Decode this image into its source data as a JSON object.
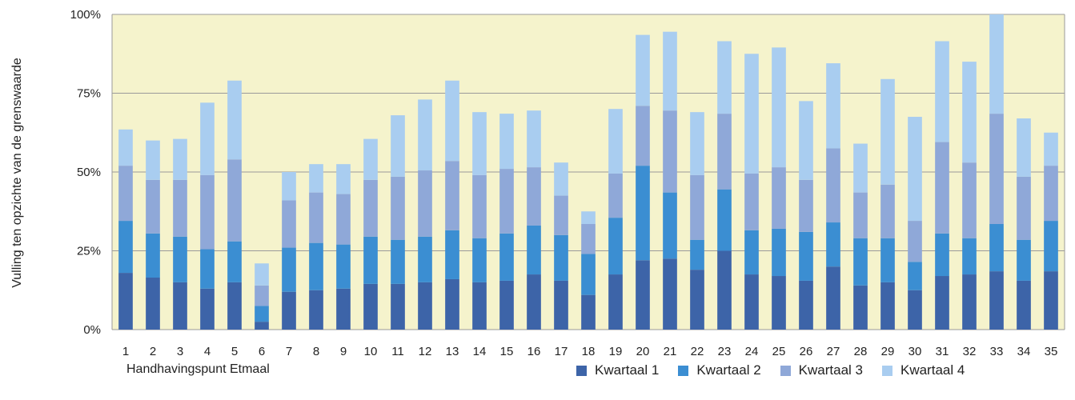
{
  "chart_data": {
    "type": "bar",
    "stacked": true,
    "ylabel": "Vulling ten opzichte van de grenswaarde",
    "xlabel": "Handhavingspunt Etmaal",
    "ylim": [
      0,
      100
    ],
    "y_ticks": [
      "0%",
      "25%",
      "50%",
      "75%",
      "100%"
    ],
    "grid": true,
    "legend_position": "bottom-right",
    "plot_background": "#f5f3cc",
    "categories": [
      "1",
      "2",
      "3",
      "4",
      "5",
      "6",
      "7",
      "8",
      "9",
      "10",
      "11",
      "12",
      "13",
      "14",
      "15",
      "16",
      "17",
      "18",
      "19",
      "20",
      "21",
      "22",
      "23",
      "24",
      "25",
      "26",
      "27",
      "28",
      "29",
      "30",
      "31",
      "32",
      "33",
      "34",
      "35"
    ],
    "series": [
      {
        "name": "Kwartaal 1",
        "color": "#3d64a8",
        "values": [
          18,
          16.5,
          15,
          13,
          15,
          2.5,
          12,
          12.5,
          13,
          14.5,
          14.5,
          15,
          16,
          15,
          15.5,
          17.5,
          15.5,
          11,
          17.5,
          22,
          22.5,
          19,
          25,
          17.5,
          17,
          15.5,
          20,
          14,
          15,
          12.5,
          17,
          17.5,
          18.5,
          15.5,
          18.5
        ]
      },
      {
        "name": "Kwartaal 2",
        "color": "#3b8ed2",
        "values": [
          16.5,
          14,
          14.5,
          12.5,
          13,
          5,
          14,
          15,
          14,
          15,
          14,
          14.5,
          15.5,
          14,
          15,
          15.5,
          14.5,
          13,
          18,
          30,
          21,
          9.5,
          19.5,
          14,
          15,
          15.5,
          14,
          15,
          14,
          9,
          13.5,
          11.5,
          15,
          13,
          16
        ]
      },
      {
        "name": "Kwartaal 3",
        "color": "#8fa8d8",
        "values": [
          17.5,
          17,
          18,
          23.5,
          26,
          6.5,
          15,
          16,
          16,
          18,
          20,
          21,
          22,
          20,
          20.5,
          18.5,
          12.5,
          9.5,
          14,
          19,
          26,
          20.5,
          24,
          18,
          19.5,
          16.5,
          23.5,
          14.5,
          17,
          13,
          29,
          24,
          35,
          20,
          17.5
        ]
      },
      {
        "name": "Kwartaal 4",
        "color": "#a9cdf0",
        "values": [
          11.5,
          12.5,
          13,
          23,
          25,
          7,
          9,
          9,
          9.5,
          13,
          19.5,
          22.5,
          25.5,
          20,
          17.5,
          18,
          10.5,
          4,
          20.5,
          22.5,
          25,
          20,
          23,
          38,
          38,
          25,
          27,
          15.5,
          33.5,
          33,
          32,
          32,
          31.5,
          18.5,
          10.5
        ]
      }
    ]
  }
}
